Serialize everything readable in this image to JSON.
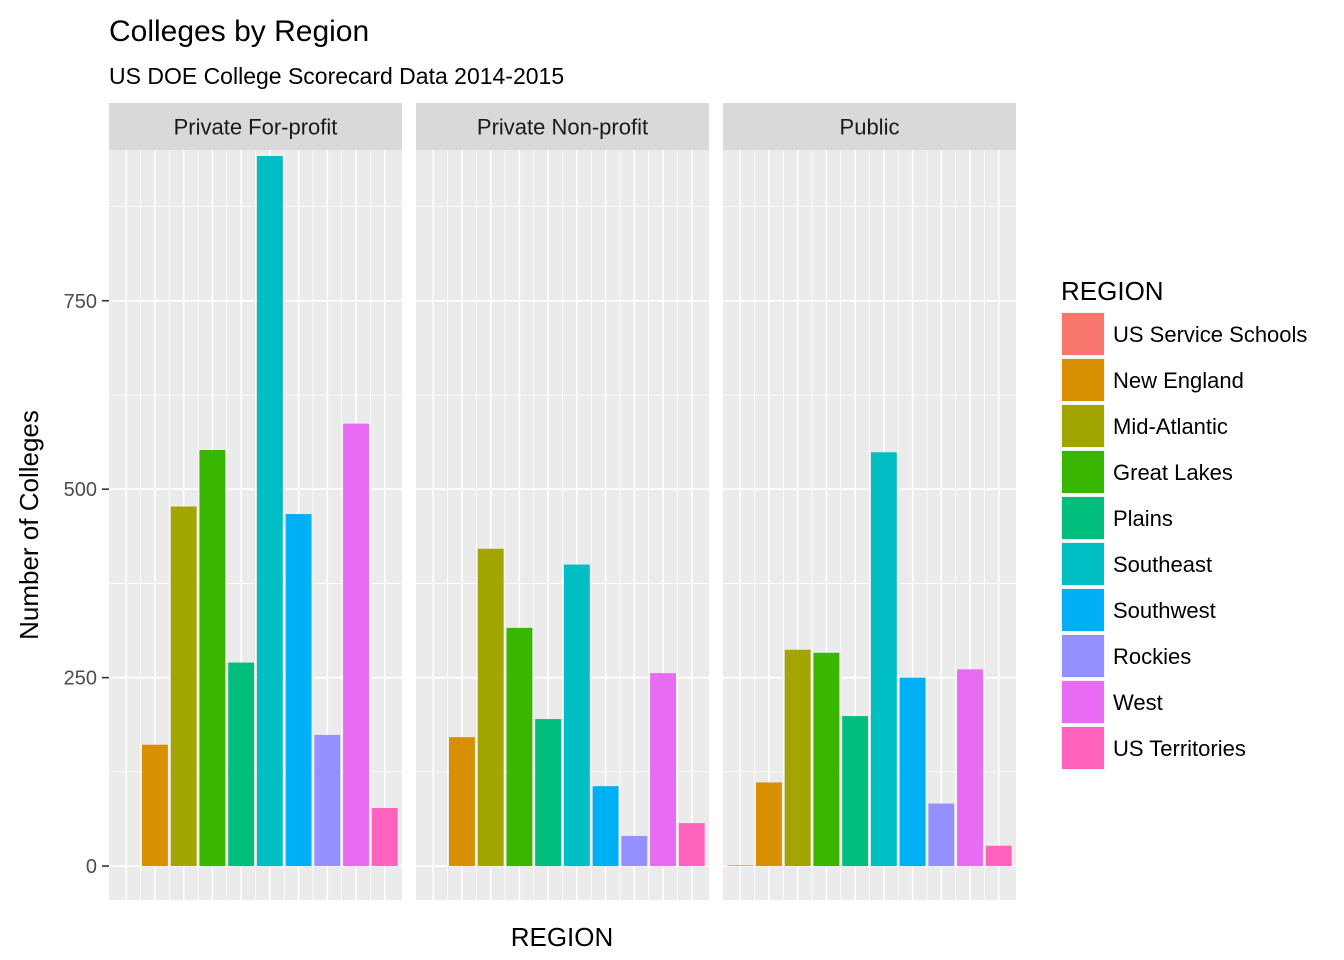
{
  "chart_data": {
    "type": "bar",
    "title": "Colleges by Region",
    "subtitle": "US DOE College Scorecard Data 2014-2015",
    "xlabel": "REGION",
    "ylabel": "Number of Colleges",
    "ylim": [
      -45,
      950
    ],
    "yticks": [
      0,
      250,
      500,
      750
    ],
    "grid": true,
    "legend_title": "REGION",
    "legend_position": "right",
    "categories": [
      "US Service Schools",
      "New England",
      "Mid-Atlantic",
      "Great Lakes",
      "Plains",
      "Southeast",
      "Southwest",
      "Rockies",
      "West",
      "US Territories"
    ],
    "colors": [
      "#F8766D",
      "#D89000",
      "#A3A500",
      "#39B600",
      "#00BF7D",
      "#00BFC4",
      "#00B0F6",
      "#9590FF",
      "#E76BF3",
      "#FF62BC"
    ],
    "facets": [
      {
        "name": "Private For-profit",
        "values": [
          0,
          161,
          477,
          552,
          270,
          942,
          467,
          174,
          587,
          77
        ]
      },
      {
        "name": "Private Non-profit",
        "values": [
          0,
          171,
          421,
          316,
          195,
          400,
          106,
          40,
          256,
          57
        ]
      },
      {
        "name": "Public",
        "values": [
          1,
          111,
          287,
          283,
          199,
          549,
          250,
          83,
          261,
          27
        ]
      }
    ]
  }
}
